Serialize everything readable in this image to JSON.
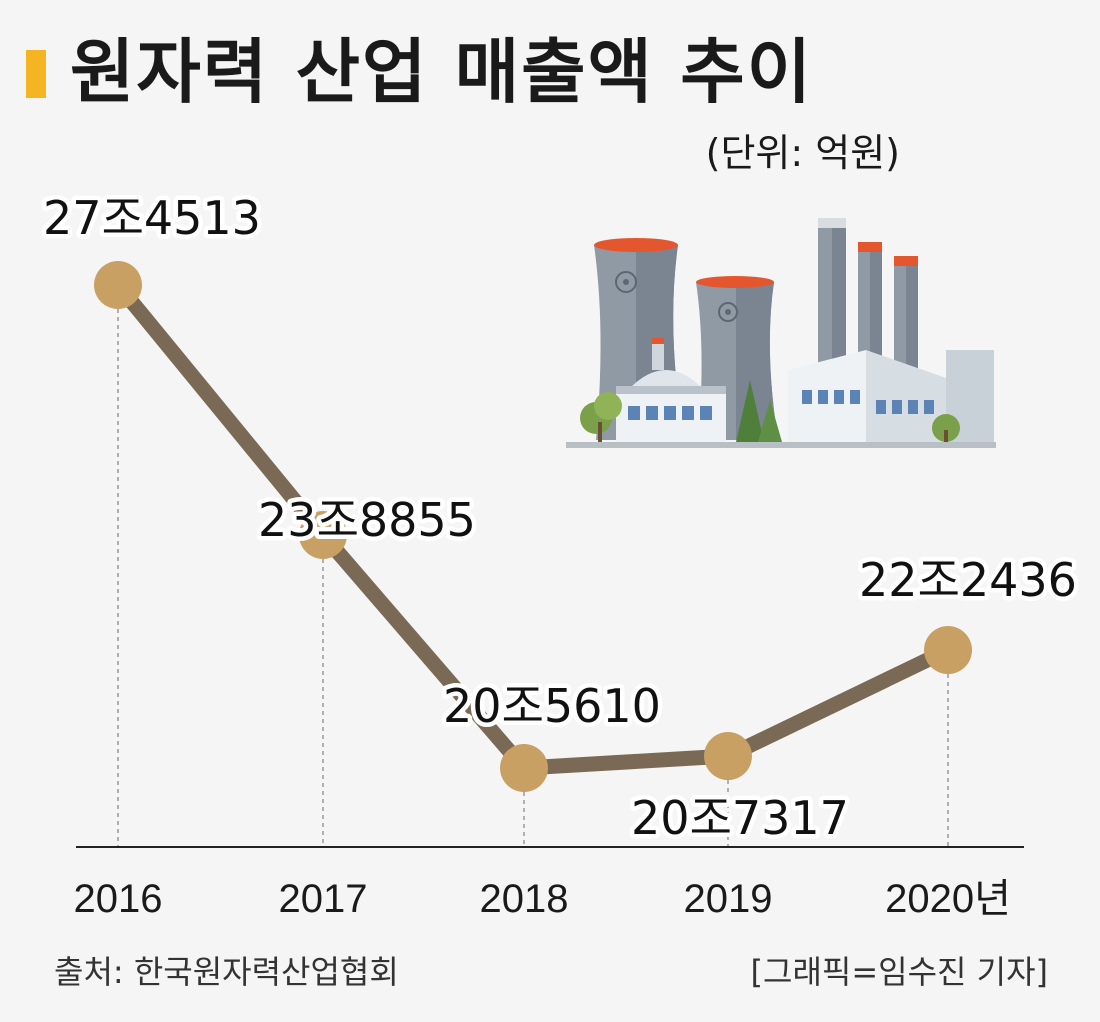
{
  "header": {
    "title": "원자력 산업 매출액 추이",
    "unit": "(단위: 억원)"
  },
  "footer": {
    "source": "출처: 한국원자력산업협회",
    "credit": "[그래픽=임수진 기자]"
  },
  "illustration": {
    "icon": "nuclear-power-plant-icon"
  },
  "colors": {
    "line": "#7a6a55",
    "marker": "#c9a063",
    "accent": "#f5b522",
    "background": "#f5f5f5"
  },
  "chart_data": {
    "type": "line",
    "title": "원자력 산업 매출액 추이",
    "categories": [
      "2016",
      "2017",
      "2018",
      "2019",
      "2020년"
    ],
    "values": [
      274513,
      238855,
      205610,
      207317,
      222436
    ],
    "value_labels": [
      "27조4513",
      "23조8855",
      "20조5610",
      "20조7317",
      "22조2436"
    ],
    "unit": "억원",
    "grid": false
  }
}
